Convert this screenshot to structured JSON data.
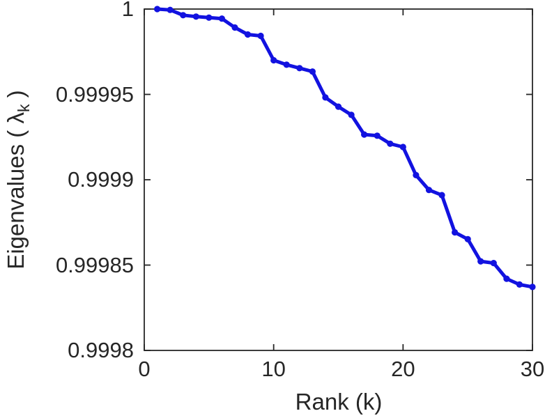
{
  "figure": {
    "background": "#ffffff",
    "axis_color": "#262626",
    "text_color": "#262626"
  },
  "chart_data": {
    "type": "line",
    "title": "",
    "xlabel": "Rank (k)",
    "ylabel": "Eigenvalues ( λk )",
    "ylabel_parts": {
      "prefix": "Eigenvalues ( ",
      "symbol": "λ",
      "subscript": "k",
      "suffix": " )"
    },
    "xlim": [
      0,
      30
    ],
    "ylim": [
      0.9998,
      1
    ],
    "grid": false,
    "box": true,
    "legend": null,
    "marker": "circle",
    "x_ticks": {
      "values": [
        0,
        10,
        20,
        30
      ],
      "labels": [
        "0",
        "10",
        "20",
        "30"
      ]
    },
    "y_ticks": {
      "values": [
        1,
        0.99995,
        0.9999,
        0.99985,
        0.9998
      ],
      "labels": [
        "1",
        "0.99995",
        "0.9999",
        "0.99985",
        "0.9998"
      ]
    },
    "x": [
      1,
      2,
      3,
      4,
      5,
      6,
      7,
      8,
      9,
      10,
      11,
      12,
      13,
      14,
      15,
      16,
      17,
      18,
      19,
      20,
      21,
      22,
      23,
      24,
      25,
      26,
      27,
      28,
      29,
      30
    ],
    "series": [
      {
        "name": "eigenvalues",
        "color": "#1212e0",
        "values": [
          1.0,
          0.9999995,
          0.9999964,
          0.9999956,
          0.999995,
          0.9999944,
          0.9999892,
          0.9999851,
          0.9999843,
          0.99997,
          0.9999674,
          0.9999654,
          0.9999634,
          0.9999482,
          0.9999428,
          0.999938,
          0.9999265,
          0.9999258,
          0.9999211,
          0.9999192,
          0.9999027,
          0.999894,
          0.999891,
          0.9998692,
          0.9998652,
          0.9998522,
          0.9998512,
          0.999842,
          0.9998386,
          0.9998372
        ]
      }
    ]
  }
}
